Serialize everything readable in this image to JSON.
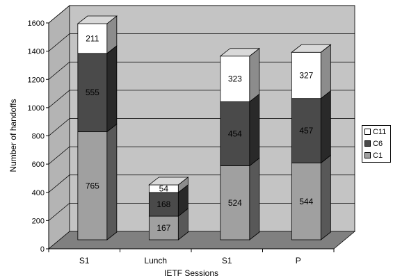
{
  "chart_data": {
    "type": "bar",
    "stacked": true,
    "three_d": true,
    "categories": [
      "S1",
      "Lunch",
      "S1",
      "P"
    ],
    "series": [
      {
        "name": "C1",
        "values": [
          765,
          167,
          524,
          544
        ],
        "color": "#a0a0a0"
      },
      {
        "name": "C6",
        "values": [
          555,
          168,
          454,
          457
        ],
        "color": "#4a4a4a"
      },
      {
        "name": "C11",
        "values": [
          211,
          54,
          323,
          327
        ],
        "color": "#ffffff"
      }
    ],
    "xlabel": "IETF Sessions",
    "ylabel": "Number of handoffs",
    "ylim": [
      0,
      1600
    ],
    "yticks": [
      0,
      200,
      400,
      600,
      800,
      1000,
      1200,
      1400,
      1600
    ],
    "grid": true,
    "legend_position": "right",
    "colors": {
      "wall": "#c4c4c4",
      "floor": "#808080",
      "gridline": "#000000"
    }
  }
}
